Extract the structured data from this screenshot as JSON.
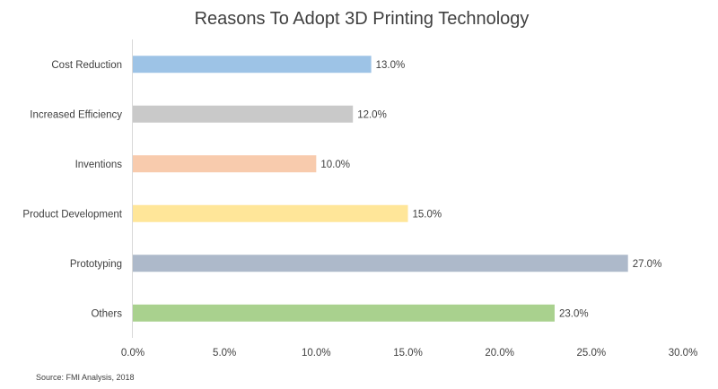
{
  "chart_data": {
    "type": "bar",
    "orientation": "horizontal",
    "title": "Reasons To Adopt 3D Printing Technology",
    "categories": [
      "Cost Reduction",
      "Increased Efficiency",
      "Inventions",
      "Product Development",
      "Prototyping",
      "Others"
    ],
    "values": [
      13.0,
      12.0,
      10.0,
      15.0,
      27.0,
      23.0
    ],
    "value_labels": [
      "13.0%",
      "12.0%",
      "10.0%",
      "15.0%",
      "27.0%",
      "23.0%"
    ],
    "colors": [
      "#9dc3e6",
      "#c9c9c9",
      "#f8cbad",
      "#ffe699",
      "#adb9ca",
      "#a9d18e"
    ],
    "xlim": [
      0,
      30
    ],
    "xticks": [
      0,
      5,
      10,
      15,
      20,
      25,
      30
    ],
    "xtick_labels": [
      "0.0%",
      "5.0%",
      "10.0%",
      "15.0%",
      "20.0%",
      "25.0%",
      "30.0%"
    ],
    "xlabel": "",
    "ylabel": "",
    "grid": false,
    "legend": "none"
  },
  "source": "Source: FMI Analysis, 2018"
}
